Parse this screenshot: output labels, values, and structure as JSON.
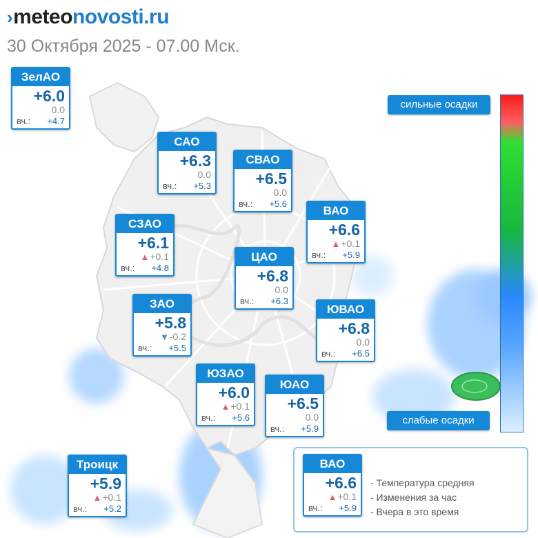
{
  "site": {
    "logo_mark": "›",
    "logo_a": "meteo",
    "logo_b": "novosti.ru"
  },
  "datetime": "30 Октября 2025 - 07.00 Мск.",
  "legend": {
    "strong": "сильные осадки",
    "weak": "слабые осадки"
  },
  "yesterday_label": "вч.:",
  "districts": [
    {
      "name": "ЗелАО",
      "temp": "+6.0",
      "change": "0.0",
      "trend": "none",
      "yesterday": "+4.7"
    },
    {
      "name": "САО",
      "temp": "+6.3",
      "change": "0.0",
      "trend": "none",
      "yesterday": "+5.3"
    },
    {
      "name": "СВАО",
      "temp": "+6.5",
      "change": "0.0",
      "trend": "none",
      "yesterday": "+5.6"
    },
    {
      "name": "СЗАО",
      "temp": "+6.1",
      "change": "+0.1",
      "trend": "up",
      "yesterday": "+4.8"
    },
    {
      "name": "ВАО",
      "temp": "+6.6",
      "change": "+0.1",
      "trend": "up",
      "yesterday": "+5.9"
    },
    {
      "name": "ЦАО",
      "temp": "+6.8",
      "change": "0.0",
      "trend": "none",
      "yesterday": "+6.3"
    },
    {
      "name": "ЗАО",
      "temp": "+5.8",
      "change": "-0.2",
      "trend": "down",
      "yesterday": "+5.5"
    },
    {
      "name": "ЮВАО",
      "temp": "+6.8",
      "change": "0.0",
      "trend": "none",
      "yesterday": "+6.5"
    },
    {
      "name": "ЮЗАО",
      "temp": "+6.0",
      "change": "+0.1",
      "trend": "up",
      "yesterday": "+5.6"
    },
    {
      "name": "ЮАО",
      "temp": "+6.5",
      "change": "0.0",
      "trend": "none",
      "yesterday": "+5.9"
    },
    {
      "name": "Троицк",
      "temp": "+5.9",
      "change": "+0.1",
      "trend": "up",
      "yesterday": "+5.2"
    }
  ],
  "key": {
    "sample": {
      "name": "ВАО",
      "temp": "+6.6",
      "change": "+0.1",
      "trend": "up",
      "yesterday": "+5.9"
    },
    "lines": [
      "- Температура средняя",
      "- Изменения за час",
      "- Вчера в это время"
    ]
  },
  "colors": {
    "accent": "#1688d8",
    "temp_text": "#1565a8",
    "up": "#e0606a",
    "down": "#3b8fd8",
    "precip_strong": "#ff1a1a",
    "precip_mid": "#21c838",
    "precip_weak": "#dcefff"
  },
  "icons": {
    "up": "triangle-up-icon",
    "down": "triangle-down-icon"
  }
}
